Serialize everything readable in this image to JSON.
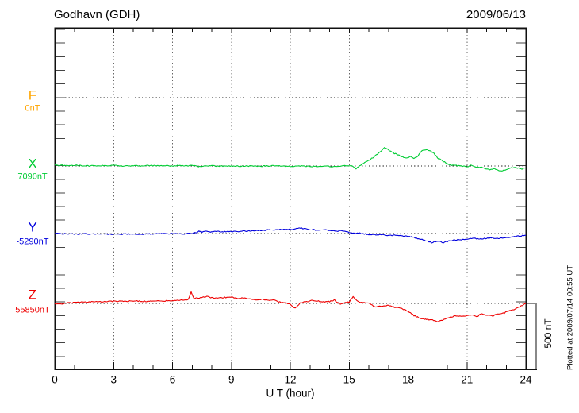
{
  "chart_data": {
    "type": "line",
    "title": "Godhavn (GDH)",
    "date": "2009/06/13",
    "xlabel": "U T (hour)",
    "x_range": [
      0,
      24
    ],
    "x_ticks": [
      0,
      3,
      6,
      9,
      12,
      15,
      18,
      21,
      24
    ],
    "x_minor_step_hours": 1,
    "y_unit": "nT",
    "amplitude_scale": {
      "label": "500 nT",
      "nT": 500
    },
    "note": "Plotted at 2009/07/14 00:55 UT",
    "grid": {
      "vertical_dotted_every_hours": 3,
      "horizontal_dotted_at_baselines": true,
      "legend": "none"
    },
    "points_format": "[hour_UT, delta_nT_from_baseline]",
    "series": [
      {
        "name": "F",
        "color": "#ffa500",
        "baseline_label": "0nT",
        "baseline_nT": 0,
        "points": []
      },
      {
        "name": "X",
        "color": "#00cc33",
        "baseline_label": "7090nT",
        "baseline_nT": 7090,
        "points": [
          [
            0,
            5
          ],
          [
            0.5,
            4
          ],
          [
            1,
            5
          ],
          [
            1.5,
            2
          ],
          [
            2,
            1
          ],
          [
            2.5,
            3
          ],
          [
            3,
            3
          ],
          [
            3.5,
            1
          ],
          [
            4,
            2
          ],
          [
            4.5,
            1
          ],
          [
            5,
            3
          ],
          [
            5.5,
            1
          ],
          [
            6,
            1
          ],
          [
            6.5,
            4
          ],
          [
            6.8,
            1
          ],
          [
            7,
            6
          ],
          [
            7.2,
            -1
          ],
          [
            7.45,
            -7
          ],
          [
            7.7,
            1
          ],
          [
            8,
            1
          ],
          [
            8.5,
            -1
          ],
          [
            9,
            0
          ],
          [
            9.5,
            -2
          ],
          [
            10,
            1
          ],
          [
            10.5,
            -1
          ],
          [
            11,
            1
          ],
          [
            11.5,
            -1
          ],
          [
            12,
            -2
          ],
          [
            12.5,
            0
          ],
          [
            13,
            -2
          ],
          [
            13.5,
            -4
          ],
          [
            14,
            -2
          ],
          [
            14.3,
            -7
          ],
          [
            14.6,
            3
          ],
          [
            15,
            -1
          ],
          [
            15.15,
            3
          ],
          [
            15.35,
            -22
          ],
          [
            15.6,
            10
          ],
          [
            15.9,
            34
          ],
          [
            16.2,
            62
          ],
          [
            16.5,
            96
          ],
          [
            16.8,
            138
          ],
          [
            17,
            122
          ],
          [
            17.3,
            96
          ],
          [
            17.6,
            76
          ],
          [
            17.9,
            58
          ],
          [
            18.1,
            70
          ],
          [
            18.3,
            54
          ],
          [
            18.5,
            78
          ],
          [
            18.7,
            112
          ],
          [
            18.9,
            126
          ],
          [
            19.1,
            116
          ],
          [
            19.3,
            98
          ],
          [
            19.5,
            62
          ],
          [
            19.8,
            34
          ],
          [
            20.1,
            10
          ],
          [
            20.4,
            4
          ],
          [
            20.7,
            -2
          ],
          [
            21,
            -5
          ],
          [
            21.2,
            4
          ],
          [
            21.5,
            -8
          ],
          [
            21.8,
            -12
          ],
          [
            22.1,
            -28
          ],
          [
            22.4,
            -20
          ],
          [
            22.7,
            -36
          ],
          [
            23,
            -28
          ],
          [
            23.2,
            -16
          ],
          [
            23.5,
            -14
          ],
          [
            23.8,
            -22
          ],
          [
            24,
            -16
          ]
        ]
      },
      {
        "name": "Y",
        "color": "#0000dd",
        "baseline_label": "-5290nT",
        "baseline_nT": -5290,
        "points": [
          [
            0,
            0
          ],
          [
            0.5,
            -3
          ],
          [
            1,
            -5
          ],
          [
            1.5,
            -3
          ],
          [
            2,
            -4
          ],
          [
            2.5,
            -3
          ],
          [
            3,
            -5
          ],
          [
            3.5,
            -4
          ],
          [
            4,
            -3
          ],
          [
            4.5,
            -5
          ],
          [
            5,
            -3
          ],
          [
            5.5,
            -3
          ],
          [
            6,
            -2
          ],
          [
            6.3,
            0
          ],
          [
            6.6,
            -2
          ],
          [
            7,
            1
          ],
          [
            7.2,
            8
          ],
          [
            7.35,
            18
          ],
          [
            7.5,
            13
          ],
          [
            7.8,
            16
          ],
          [
            8,
            13
          ],
          [
            8.3,
            16
          ],
          [
            8.6,
            13
          ],
          [
            9,
            16
          ],
          [
            9.3,
            14
          ],
          [
            9.6,
            18
          ],
          [
            10,
            20
          ],
          [
            10.3,
            22
          ],
          [
            10.6,
            25
          ],
          [
            11,
            29
          ],
          [
            11.3,
            27
          ],
          [
            11.6,
            31
          ],
          [
            12,
            30
          ],
          [
            12.2,
            35
          ],
          [
            12.45,
            42
          ],
          [
            12.7,
            38
          ],
          [
            12.9,
            33
          ],
          [
            13.1,
            29
          ],
          [
            13.4,
            26
          ],
          [
            13.7,
            28
          ],
          [
            14,
            23
          ],
          [
            14.3,
            19
          ],
          [
            14.6,
            21
          ],
          [
            15,
            7
          ],
          [
            15.3,
            3
          ],
          [
            15.6,
            1
          ],
          [
            16,
            -7
          ],
          [
            16.3,
            -11
          ],
          [
            16.6,
            -8
          ],
          [
            17,
            -14
          ],
          [
            17.3,
            -12
          ],
          [
            17.6,
            -16
          ],
          [
            18,
            -22
          ],
          [
            18.3,
            -30
          ],
          [
            18.6,
            -43
          ],
          [
            19,
            -56
          ],
          [
            19.2,
            -70
          ],
          [
            19.4,
            -62
          ],
          [
            19.6,
            -58
          ],
          [
            19.8,
            -70
          ],
          [
            20,
            -61
          ],
          [
            20.3,
            -50
          ],
          [
            20.6,
            -46
          ],
          [
            21,
            -44
          ],
          [
            21.3,
            -35
          ],
          [
            21.6,
            -41
          ],
          [
            22,
            -38
          ],
          [
            22.3,
            -33
          ],
          [
            22.6,
            -36
          ],
          [
            23,
            -30
          ],
          [
            23.3,
            -26
          ],
          [
            23.6,
            -21
          ],
          [
            24,
            -13
          ]
        ]
      },
      {
        "name": "Z",
        "color": "#ee0000",
        "baseline_label": "55850nT",
        "baseline_nT": 55850,
        "points": [
          [
            0,
            0
          ],
          [
            0.3,
            -4
          ],
          [
            0.6,
            2
          ],
          [
            1,
            6
          ],
          [
            1.5,
            10
          ],
          [
            2,
            12
          ],
          [
            2.5,
            14
          ],
          [
            3,
            16
          ],
          [
            3.5,
            16
          ],
          [
            4,
            18
          ],
          [
            4.5,
            16
          ],
          [
            5,
            18
          ],
          [
            5.5,
            18
          ],
          [
            6,
            22
          ],
          [
            6.3,
            22
          ],
          [
            6.6,
            26
          ],
          [
            6.8,
            30
          ],
          [
            6.95,
            84
          ],
          [
            7.1,
            38
          ],
          [
            7.3,
            40
          ],
          [
            7.5,
            44
          ],
          [
            7.75,
            54
          ],
          [
            8,
            42
          ],
          [
            8.3,
            40
          ],
          [
            8.6,
            44
          ],
          [
            9,
            50
          ],
          [
            9.2,
            40
          ],
          [
            9.4,
            36
          ],
          [
            9.6,
            42
          ],
          [
            9.8,
            38
          ],
          [
            10,
            31
          ],
          [
            10.3,
            28
          ],
          [
            10.6,
            30
          ],
          [
            11,
            20
          ],
          [
            11.2,
            27
          ],
          [
            11.4,
            12
          ],
          [
            11.6,
            6
          ],
          [
            11.8,
            2
          ],
          [
            12,
            -8
          ],
          [
            12.25,
            -38
          ],
          [
            12.5,
            4
          ],
          [
            12.7,
            10
          ],
          [
            13,
            19
          ],
          [
            13.2,
            22
          ],
          [
            13.5,
            16
          ],
          [
            13.7,
            12
          ],
          [
            14,
            14
          ],
          [
            14.25,
            27
          ],
          [
            14.5,
            -5
          ],
          [
            14.8,
            5
          ],
          [
            15,
            10
          ],
          [
            15.2,
            52
          ],
          [
            15.45,
            12
          ],
          [
            15.7,
            8
          ],
          [
            16,
            2
          ],
          [
            16.3,
            -26
          ],
          [
            16.6,
            -20
          ],
          [
            17,
            -16
          ],
          [
            17.3,
            -28
          ],
          [
            17.6,
            -34
          ],
          [
            18,
            -58
          ],
          [
            18.3,
            -92
          ],
          [
            18.6,
            -112
          ],
          [
            19,
            -122
          ],
          [
            19.3,
            -128
          ],
          [
            19.5,
            -140
          ],
          [
            19.7,
            -132
          ],
          [
            19.9,
            -120
          ],
          [
            20.1,
            -106
          ],
          [
            20.4,
            -94
          ],
          [
            20.7,
            -98
          ],
          [
            21,
            -92
          ],
          [
            21.3,
            -87
          ],
          [
            21.5,
            -103
          ],
          [
            21.7,
            -80
          ],
          [
            22,
            -88
          ],
          [
            22.3,
            -94
          ],
          [
            22.6,
            -78
          ],
          [
            22.9,
            -73
          ],
          [
            23.1,
            -57
          ],
          [
            23.4,
            -45
          ],
          [
            23.7,
            -27
          ],
          [
            23.9,
            -8
          ],
          [
            24,
            -2
          ]
        ]
      }
    ]
  }
}
